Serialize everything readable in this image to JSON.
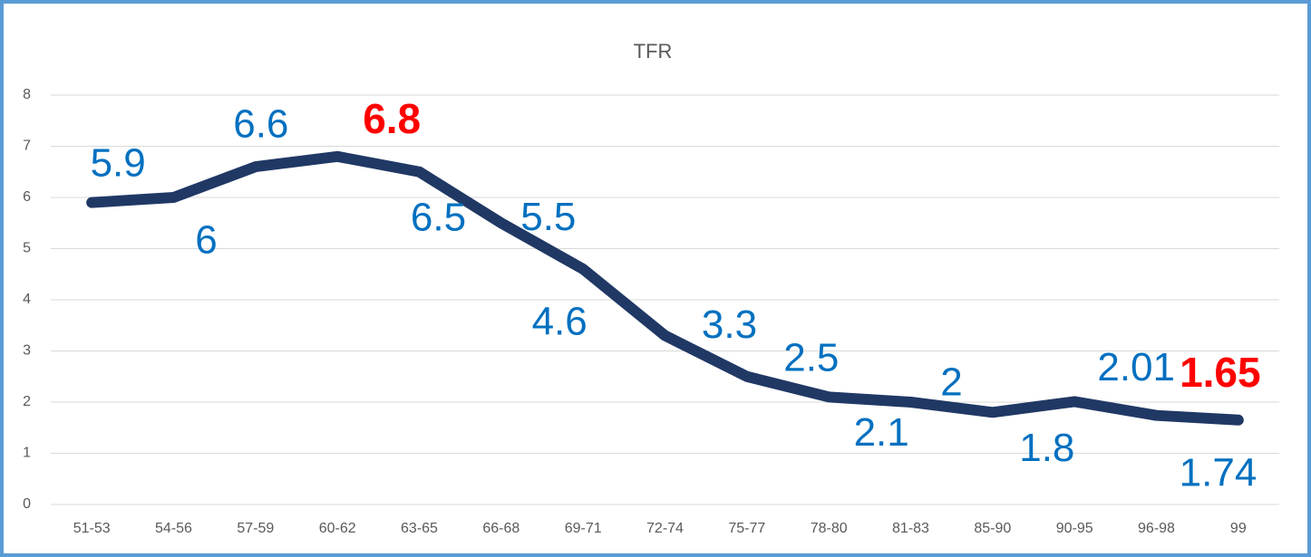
{
  "chart_data": {
    "type": "line",
    "title": "TFR",
    "categories": [
      "51-53",
      "54-56",
      "57-59",
      "60-62",
      "63-65",
      "66-68",
      "69-71",
      "72-74",
      "75-77",
      "78-80",
      "81-83",
      "85-90",
      "90-95",
      "96-98",
      "99"
    ],
    "series": [
      {
        "name": "TFR",
        "color": "#203864",
        "values": [
          5.9,
          6,
          6.6,
          6.8,
          6.5,
          5.5,
          4.6,
          3.3,
          2.5,
          2.1,
          2,
          1.8,
          2.01,
          1.74,
          1.65
        ]
      }
    ],
    "ylim": [
      0,
      8
    ],
    "yticks": [
      0,
      1,
      2,
      3,
      4,
      5,
      6,
      7,
      8
    ],
    "grid": true,
    "label_color": "#0070c0",
    "highlight_color": "#ff0000",
    "highlight": [
      3,
      14
    ]
  }
}
